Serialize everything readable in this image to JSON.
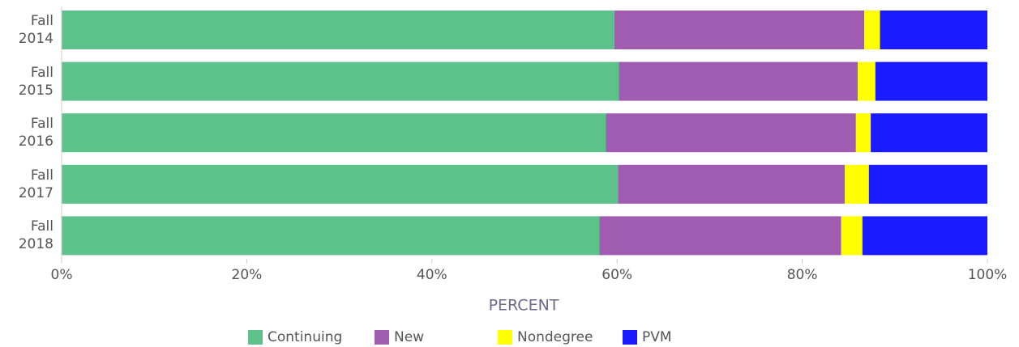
{
  "chart_data": {
    "type": "stacked-bar-horizontal",
    "categories": [
      "Fall 2014",
      "Fall 2015",
      "Fall 2016",
      "Fall 2017",
      "Fall 2018"
    ],
    "series": [
      {
        "name": "Continuing",
        "color": "#5cc28a",
        "values": [
          59.7,
          60.2,
          58.8,
          60.1,
          58.1
        ]
      },
      {
        "name": "New",
        "color": "#a05cb0",
        "values": [
          27.0,
          25.8,
          27.0,
          24.5,
          26.1
        ]
      },
      {
        "name": "Nondegree",
        "color": "#ffff00",
        "values": [
          1.7,
          1.9,
          1.6,
          2.6,
          2.3
        ]
      },
      {
        "name": "PVM",
        "color": "#1a1aff",
        "values": [
          11.6,
          12.1,
          12.6,
          12.8,
          13.5
        ]
      }
    ],
    "xlabel": "PERCENT",
    "xlim": [
      0,
      100
    ],
    "xticks": [
      {
        "value": 0,
        "label": "0%"
      },
      {
        "value": 20,
        "label": "20%"
      },
      {
        "value": 40,
        "label": "40%"
      },
      {
        "value": 60,
        "label": "60%"
      },
      {
        "value": 80,
        "label": "80%"
      },
      {
        "value": 100,
        "label": "100%"
      }
    ],
    "legend": "bottom"
  }
}
